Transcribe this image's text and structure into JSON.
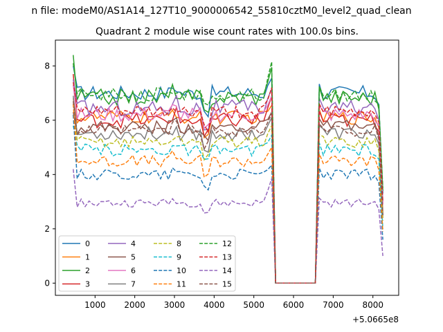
{
  "chart_data": {
    "type": "line",
    "suptitle": "n file: modeM0/AS1A14_127T10_9000006542_55810cztM0_level2_quad_clean",
    "title": "Quadrant 2 module wise count rates with 100.0s bins.",
    "xlabel": "",
    "ylabel": "",
    "x_offset_label": "+5.0665e8",
    "xlim": [
      0,
      8650
    ],
    "ylim": [
      -0.45,
      8.95
    ],
    "xticks": [
      1000,
      2000,
      3000,
      4000,
      5000,
      6000,
      7000,
      8000
    ],
    "yticks": [
      0,
      2,
      4,
      6,
      8
    ],
    "grid": false,
    "legend_position": "lower-left",
    "segment1": {
      "x_start": 450,
      "x_end": 5450,
      "step": 100
    },
    "gap": {
      "x_start": 5550,
      "x_end": 6550,
      "value": 0
    },
    "segment2": {
      "x_start": 6650,
      "x_end": 8250,
      "step": 100
    },
    "series": [
      {
        "name": "0",
        "color": "#1f77b4",
        "dash": "solid",
        "base": 7.0,
        "amp": 0.28,
        "start": 8.0,
        "bump": 0.55,
        "end2": 3.3
      },
      {
        "name": "1",
        "color": "#ff7f0e",
        "dash": "solid",
        "base": 6.1,
        "amp": 0.25,
        "start": 6.8,
        "bump": 0.45,
        "end2": 2.6
      },
      {
        "name": "2",
        "color": "#2ca02c",
        "dash": "solid",
        "base": 6.85,
        "amp": 0.3,
        "start": 8.4,
        "bump": 1.1,
        "end2": 3.4
      },
      {
        "name": "3",
        "color": "#d62728",
        "dash": "solid",
        "base": 6.0,
        "amp": 0.28,
        "start": 7.7,
        "bump": 0.9,
        "end2": 2.9
      },
      {
        "name": "4",
        "color": "#9467bd",
        "dash": "solid",
        "base": 6.45,
        "amp": 0.3,
        "start": 7.5,
        "bump": 0.7,
        "end2": 3.0
      },
      {
        "name": "5",
        "color": "#8c564b",
        "dash": "solid",
        "base": 5.75,
        "amp": 0.25,
        "start": 6.3,
        "bump": 0.55,
        "end2": 2.5
      },
      {
        "name": "6",
        "color": "#e377c2",
        "dash": "solid",
        "base": 6.2,
        "amp": 0.27,
        "start": 7.3,
        "bump": 0.7,
        "end2": 2.9
      },
      {
        "name": "7",
        "color": "#7f7f7f",
        "dash": "solid",
        "base": 5.5,
        "amp": 0.25,
        "start": 6.9,
        "bump": 0.6,
        "end2": 2.4
      },
      {
        "name": "8",
        "color": "#bcbd22",
        "dash": "dashed",
        "base": 5.2,
        "amp": 0.22,
        "start": 6.2,
        "bump": 0.6,
        "end2": 2.3
      },
      {
        "name": "9",
        "color": "#17becf",
        "dash": "dashed",
        "base": 4.9,
        "amp": 0.22,
        "start": 5.8,
        "bump": 0.55,
        "end2": 2.0
      },
      {
        "name": "10",
        "color": "#1f77b4",
        "dash": "dashed",
        "base": 4.0,
        "amp": 0.2,
        "start": 6.2,
        "bump": 0.35,
        "end2": 1.6
      },
      {
        "name": "11",
        "color": "#ff7f0e",
        "dash": "dashed",
        "base": 4.5,
        "amp": 0.22,
        "start": 6.6,
        "bump": 0.5,
        "end2": 1.9
      },
      {
        "name": "12",
        "color": "#2ca02c",
        "dash": "dashed",
        "base": 6.95,
        "amp": 0.25,
        "start": 8.1,
        "bump": 1.2,
        "end2": 3.5
      },
      {
        "name": "13",
        "color": "#d62728",
        "dash": "dashed",
        "base": 6.3,
        "amp": 0.25,
        "start": 7.4,
        "bump": 0.9,
        "end2": 3.0
      },
      {
        "name": "14",
        "color": "#9467bd",
        "dash": "dashed",
        "base": 2.95,
        "amp": 0.15,
        "start": 4.2,
        "bump": 0.9,
        "end2": 1.0
      },
      {
        "name": "15",
        "color": "#8c564b",
        "dash": "dashed",
        "base": 5.6,
        "amp": 0.22,
        "start": 6.7,
        "bump": 0.65,
        "end2": 2.5
      }
    ]
  }
}
